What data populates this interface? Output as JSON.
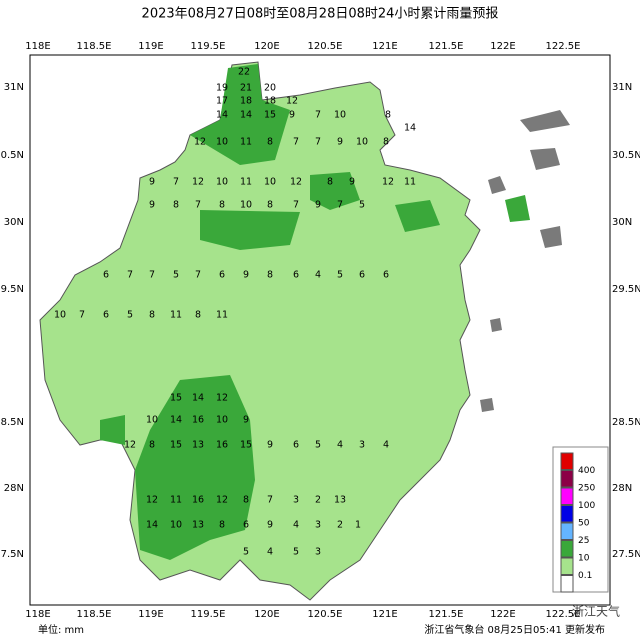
{
  "header": {
    "title": "2023年08月27日08时至08月28日08时24小时累计雨量预报"
  },
  "axes": {
    "lon": [
      "118E",
      "118.5E",
      "119E",
      "119.5E",
      "120E",
      "120.5E",
      "121E",
      "121.5E",
      "122E",
      "122.5E"
    ],
    "lat": [
      "31N",
      "30.5N",
      "30N",
      "29.5N",
      "28.5N",
      "28N",
      "27.5N"
    ]
  },
  "legend": {
    "items": [
      {
        "value": 400,
        "color": "#e00000"
      },
      {
        "value": 250,
        "color": "#8c0046"
      },
      {
        "value": 100,
        "color": "#ff00ff"
      },
      {
        "value": 50,
        "color": "#0000e6"
      },
      {
        "value": 25,
        "color": "#64b4ff"
      },
      {
        "value": 10,
        "color": "#3aa83a"
      },
      {
        "value": 0.1,
        "color": "#a6e38c"
      }
    ],
    "bottom_color": "#ffffff"
  },
  "stations": [
    22,
    19,
    21,
    20,
    17,
    18,
    18,
    12,
    14,
    14,
    15,
    9,
    7,
    10,
    8,
    14,
    12,
    10,
    11,
    8,
    7,
    7,
    9,
    10,
    8,
    9,
    7,
    12,
    10,
    11,
    10,
    12,
    8,
    9,
    12,
    11,
    9,
    8,
    7,
    8,
    10,
    8,
    7,
    9,
    7,
    5,
    6,
    7,
    7,
    5,
    7,
    6,
    9,
    8,
    6,
    4,
    5,
    6,
    6,
    10,
    7,
    6,
    5,
    8,
    11,
    8,
    11,
    15,
    14,
    12,
    10,
    14,
    16,
    10,
    9,
    12,
    8,
    15,
    13,
    16,
    15,
    9,
    6,
    5,
    4,
    3,
    4,
    12,
    11,
    16,
    12,
    8,
    7,
    3,
    2,
    13,
    14,
    10,
    13,
    8,
    6,
    9,
    4,
    3,
    2,
    1,
    5,
    4,
    5,
    3
  ],
  "footer": {
    "unit": "单位: mm",
    "issuer": "浙江省气象台 08月25日05:41 更新发布",
    "watermark": "浙江天气"
  }
}
